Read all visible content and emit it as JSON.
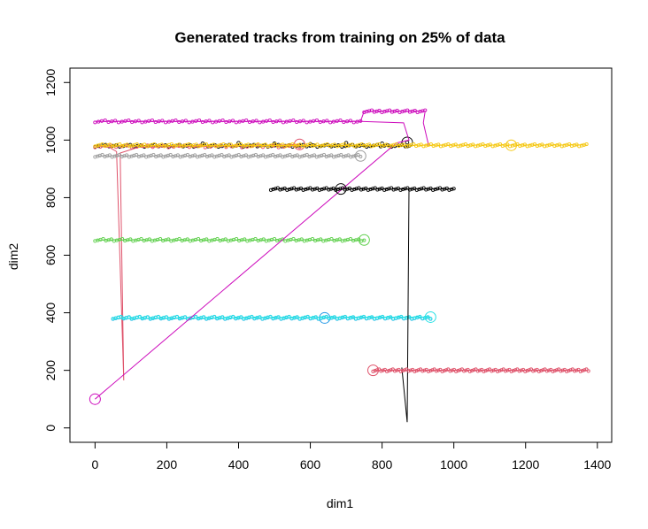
{
  "chart_data": {
    "type": "line",
    "title": "Generated tracks from training on 25% of data",
    "xlabel": "dim1",
    "ylabel": "dim2",
    "xlim": [
      -70,
      1440
    ],
    "ylim": [
      -50,
      1250
    ],
    "xticks": [
      0,
      200,
      400,
      600,
      800,
      1000,
      1200,
      1400
    ],
    "yticks": [
      0,
      200,
      400,
      600,
      800,
      1000,
      1200
    ],
    "grid": false,
    "legend": "none",
    "series": [
      {
        "color": "#000000",
        "style": "points",
        "x_range": [
          0,
          875
        ],
        "y": 980,
        "n": 90,
        "extra_points": [
          [
            300,
            988
          ],
          [
            400,
            990
          ],
          [
            500,
            988
          ],
          [
            600,
            986
          ],
          [
            700,
            990
          ],
          [
            800,
            988
          ],
          [
            870,
            992
          ]
        ],
        "start": [
          0,
          980
        ],
        "end": [
          870,
          992
        ]
      },
      {
        "color": "#DF536B",
        "style": "pathpoints",
        "path": [
          [
            0,
            980
          ],
          [
            40,
            975
          ],
          [
            60,
            960
          ],
          [
            80,
            165
          ],
          [
            70,
            955
          ],
          [
            120,
            975
          ],
          [
            300,
            978
          ],
          [
            500,
            982
          ],
          [
            570,
            985
          ]
        ],
        "points_x_range": [
          0,
          570
        ],
        "points_y": 978,
        "n": 40,
        "marker": [
          570,
          985
        ]
      },
      {
        "color": "#61D04F",
        "style": "pathpoints",
        "path": [
          [
            0,
            653
          ],
          [
            750,
            653
          ]
        ],
        "points_x_range": [
          0,
          750
        ],
        "points_y": 653,
        "n": 100,
        "marker": [
          750,
          653
        ]
      },
      {
        "color": "#2297E6",
        "style": "pathpoints",
        "path": [
          [
            50,
            380
          ],
          [
            935,
            385
          ]
        ],
        "points_x_range": [
          50,
          935
        ],
        "points_y": 382,
        "n": 120,
        "marker": [
          640,
          382
        ],
        "end_marker": [
          935,
          385
        ]
      },
      {
        "color": "#28E2E5",
        "style": "pathpoints",
        "path": [
          [
            50,
            380
          ],
          [
            935,
            385
          ]
        ],
        "points_x_range": [
          50,
          935
        ],
        "points_y": 383,
        "n": 120,
        "marker": [
          935,
          385
        ]
      },
      {
        "color": "#CD0BBC",
        "style": "pathpoints",
        "path": [
          [
            0,
            100
          ],
          [
            840,
            990
          ],
          [
            875,
            1000
          ],
          [
            860,
            1060
          ],
          [
            740,
            1065
          ],
          [
            0,
            1065
          ]
        ],
        "path2": [
          [
            740,
            1065
          ],
          [
            750,
            1100
          ],
          [
            920,
            1100
          ],
          [
            915,
            1060
          ],
          [
            930,
            980
          ]
        ],
        "points_x_range": [
          0,
          740
        ],
        "points_y": 1065,
        "n": 80,
        "points2_x_range": [
          750,
          920
        ],
        "points2_y": 1100,
        "n2": 25,
        "marker": [
          0,
          100
        ]
      },
      {
        "color": "#F5C710",
        "style": "pathpoints",
        "path": [
          [
            0,
            980
          ],
          [
            1370,
            983
          ]
        ],
        "points_x_range": [
          0,
          1370
        ],
        "points_y": 982,
        "n": 200,
        "marker": [
          1160,
          982
        ]
      },
      {
        "color": "#9E9E9E",
        "style": "pathpoints",
        "path": [
          [
            0,
            945
          ],
          [
            740,
            945
          ]
        ],
        "points_x_range": [
          0,
          740
        ],
        "points_y": 945,
        "n": 110,
        "marker": [
          740,
          945
        ]
      },
      {
        "color": "#000000",
        "style": "pathpoints",
        "path": [
          [
            490,
            830
          ],
          [
            1000,
            830
          ]
        ],
        "points_x_range": [
          490,
          1000
        ],
        "points_y": 830,
        "n": 80,
        "marker": [
          685,
          830
        ],
        "vertical": [
          [
            850,
            830
          ],
          [
            875,
            830
          ],
          [
            870,
            20
          ],
          [
            855,
            210
          ]
        ]
      },
      {
        "color": "#DF536B",
        "style": "pathpoints",
        "path": [
          [
            775,
            200
          ],
          [
            1375,
            200
          ]
        ],
        "points_x_range": [
          775,
          1375
        ],
        "points_y": 200,
        "n": 110,
        "marker": [
          775,
          200
        ]
      }
    ]
  }
}
